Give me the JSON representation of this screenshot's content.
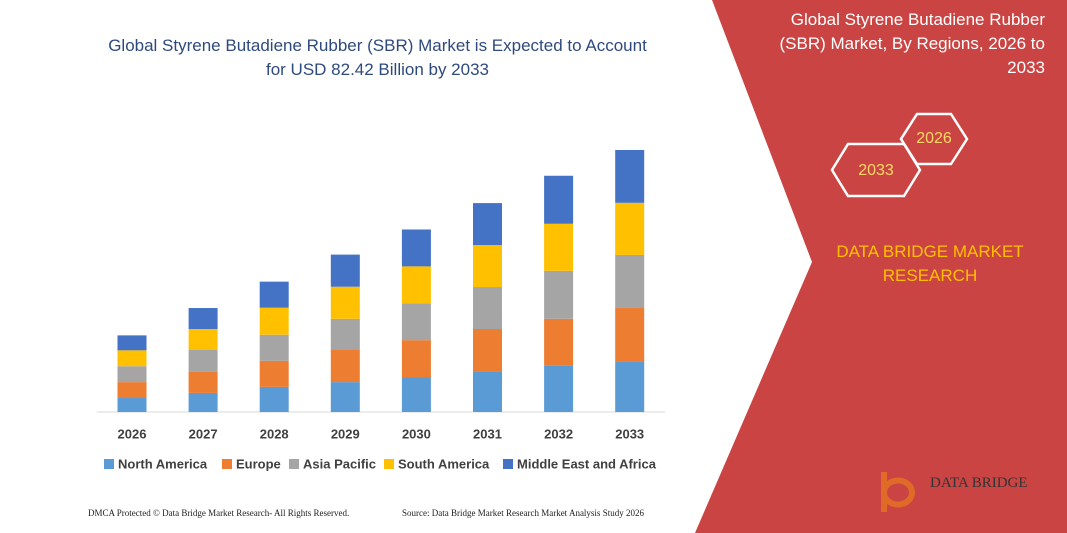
{
  "chart_data": {
    "type": "stacked-bar",
    "title": "Global Styrene Butadiene Rubber (SBR) Market is Expected to Account for USD 82.42 Billion by 2033",
    "categories": [
      "2026",
      "2027",
      "2028",
      "2029",
      "2030",
      "2031",
      "2032",
      "2033"
    ],
    "series": [
      {
        "name": "North America",
        "color": "#5b9bd5",
        "values": [
          4.4,
          6.0,
          7.9,
          9.4,
          11.0,
          12.6,
          14.5,
          16.0
        ]
      },
      {
        "name": "Europe",
        "color": "#ed7d31",
        "values": [
          5.0,
          6.6,
          8.2,
          10.1,
          11.6,
          13.5,
          14.8,
          16.7
        ]
      },
      {
        "name": "Asia Pacific",
        "color": "#a5a5a5",
        "values": [
          5.0,
          6.9,
          8.2,
          9.8,
          11.6,
          13.2,
          15.1,
          16.7
        ]
      },
      {
        "name": "South America",
        "color": "#ffc000",
        "values": [
          5.0,
          6.6,
          8.5,
          10.1,
          11.6,
          13.2,
          14.8,
          16.4
        ]
      },
      {
        "name": "Middle East and Africa",
        "color": "#4472c4",
        "values": [
          4.7,
          6.6,
          8.2,
          10.1,
          11.6,
          13.2,
          15.1,
          16.6
        ]
      }
    ]
  },
  "panel": {
    "title": "Global Styrene Butadiene Rubber (SBR) Market, By Regions, 2026 to 2033",
    "badges": [
      "2033",
      "2026"
    ],
    "brand": "DATA BRIDGE MARKET RESEARCH",
    "logo": "DATA BRIDGE"
  },
  "footer": {
    "left": "DMCA Protected © Data Bridge Market Research- All Rights Reserved.",
    "right": "Source: Data Bridge Market Research Market Analysis Study 2026"
  }
}
